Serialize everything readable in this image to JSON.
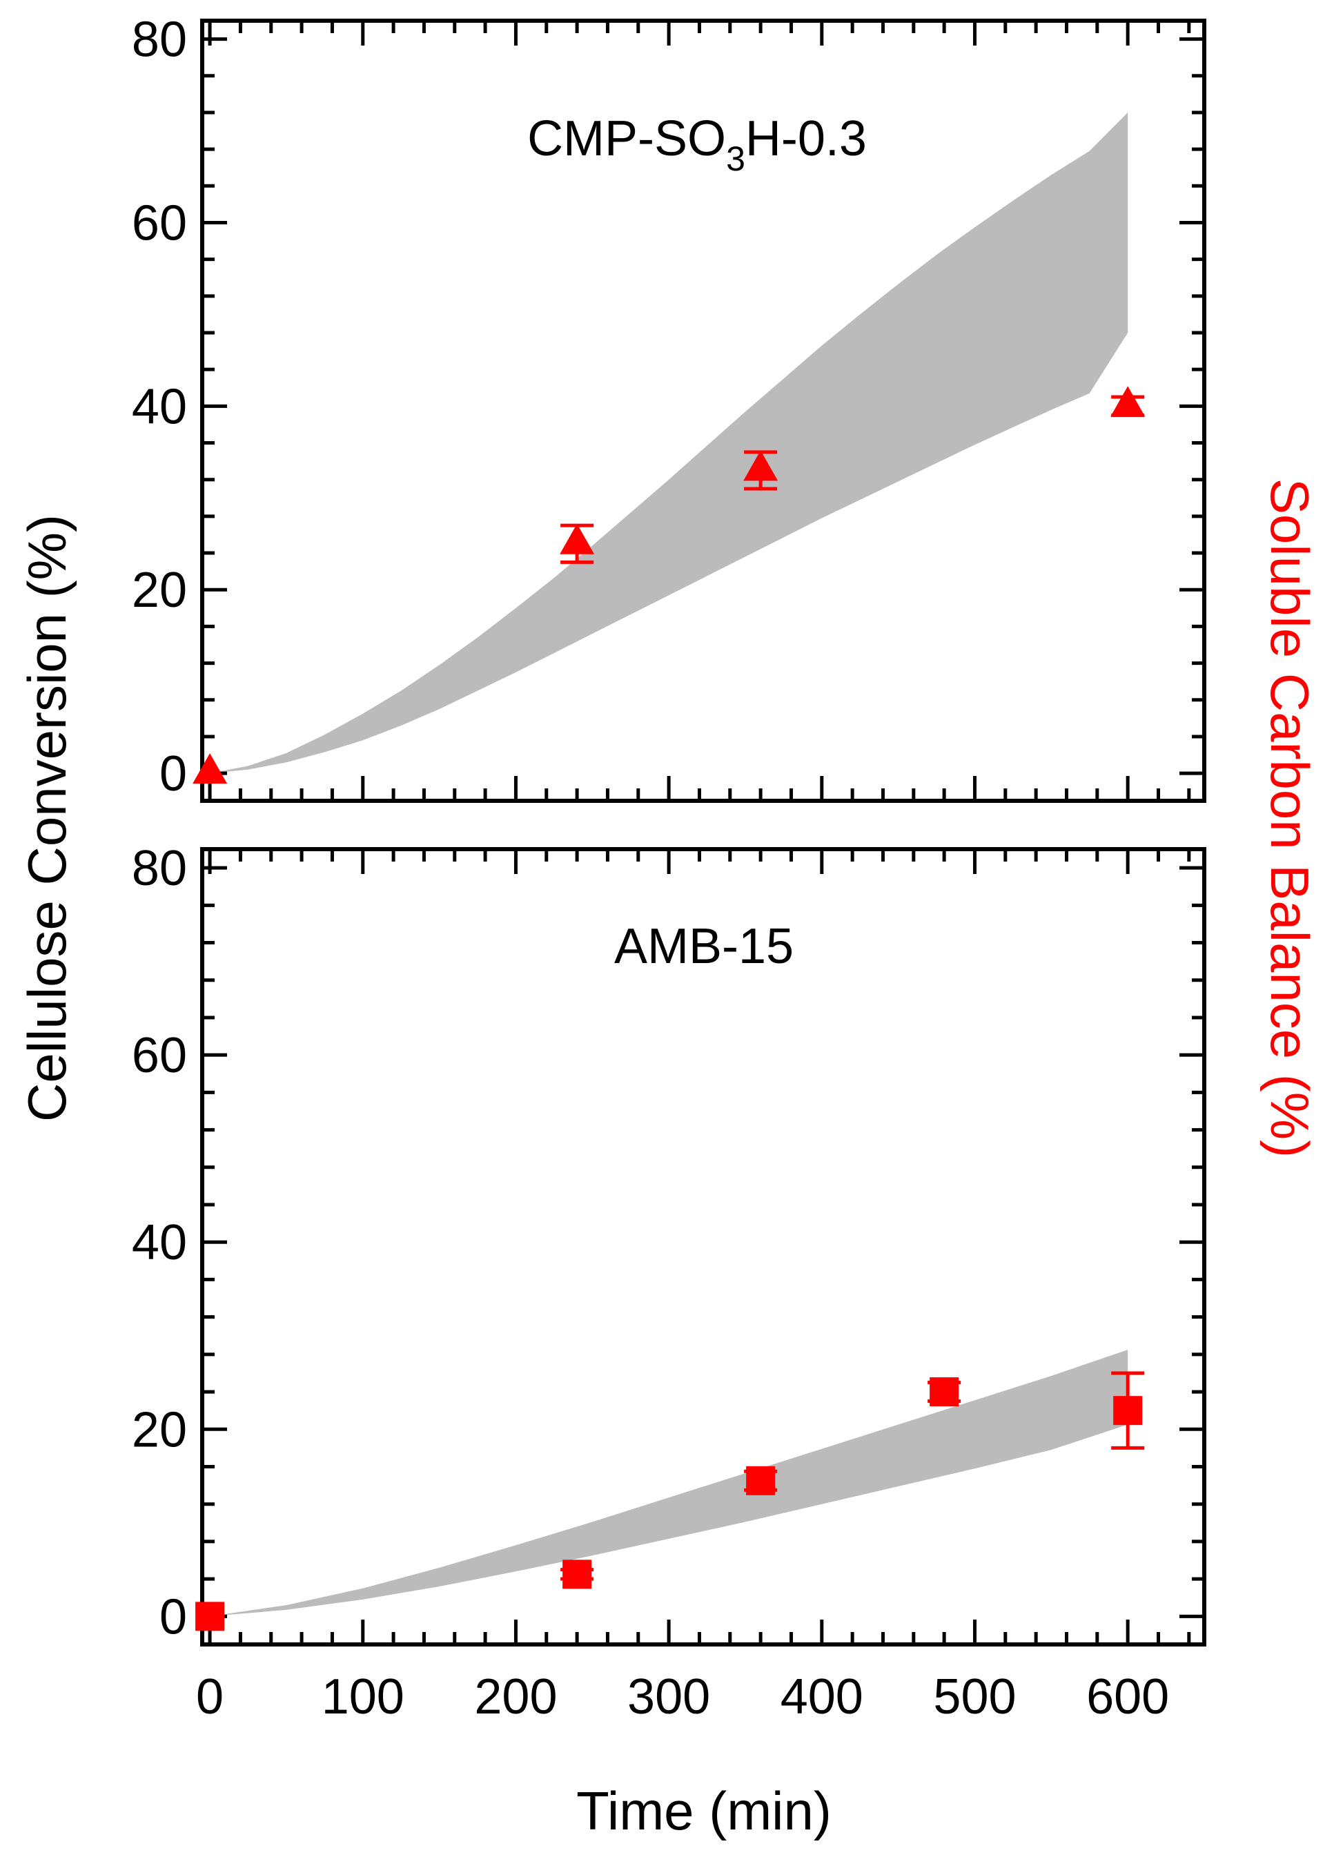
{
  "chart_data": [
    {
      "type": "area",
      "panel_label": "CMP-SO",
      "panel_label_sub": "3",
      "panel_label_rest": "H-0.3",
      "xlim": [
        -5,
        650
      ],
      "ylim": [
        -3,
        82
      ],
      "yticks": [
        0,
        20,
        40,
        60,
        80
      ],
      "band": {
        "x": [
          0,
          25,
          50,
          75,
          100,
          125,
          150,
          175,
          200,
          225,
          250,
          275,
          300,
          325,
          350,
          375,
          400,
          425,
          450,
          475,
          500,
          525,
          550,
          575,
          600
        ],
        "upper": [
          0,
          0.8,
          2.2,
          4.2,
          6.5,
          9.0,
          11.8,
          14.8,
          18.0,
          21.3,
          24.8,
          28.4,
          32.0,
          35.7,
          39.4,
          43.0,
          46.6,
          50.0,
          53.3,
          56.5,
          59.5,
          62.4,
          65.2,
          67.8,
          72.0
        ],
        "lower": [
          0,
          0.4,
          1.2,
          2.3,
          3.6,
          5.2,
          7.0,
          9.0,
          11.0,
          13.1,
          15.2,
          17.3,
          19.4,
          21.5,
          23.6,
          25.7,
          27.8,
          29.8,
          31.8,
          33.8,
          35.8,
          37.7,
          39.6,
          41.4,
          48.0
        ]
      },
      "series": [
        {
          "marker": "triangle",
          "color": "#ff0000",
          "x": [
            0,
            240,
            360,
            600
          ],
          "y": [
            0,
            25,
            33,
            40
          ],
          "err": [
            0,
            2,
            2,
            1
          ]
        }
      ]
    },
    {
      "type": "area",
      "panel_label": "AMB-15",
      "xlim": [
        -5,
        650
      ],
      "ylim": [
        -3,
        82
      ],
      "yticks": [
        0,
        20,
        40,
        60,
        80
      ],
      "xticks": [
        0,
        100,
        200,
        300,
        400,
        500,
        600
      ],
      "band": {
        "x": [
          0,
          50,
          100,
          150,
          200,
          250,
          300,
          350,
          400,
          450,
          500,
          550,
          600
        ],
        "upper": [
          0,
          1.2,
          3.0,
          5.2,
          7.6,
          10.1,
          12.7,
          15.3,
          17.9,
          20.5,
          23.1,
          25.7,
          28.5
        ],
        "lower": [
          0,
          0.7,
          1.8,
          3.2,
          4.8,
          6.5,
          8.3,
          10.1,
          12.0,
          13.9,
          15.8,
          17.8,
          20.5
        ]
      },
      "series": [
        {
          "marker": "square",
          "color": "#ff0000",
          "x": [
            0,
            240,
            360,
            480,
            600
          ],
          "y": [
            0,
            4.5,
            14.5,
            24,
            22
          ],
          "err": [
            0,
            0.5,
            1.0,
            1.0,
            4.0
          ]
        }
      ]
    }
  ],
  "axes": {
    "xlabel": "Time (min)",
    "ylabel_left": "Cellulose Conversion (%)",
    "ylabel_right": "Soluble Carbon Balance (%)",
    "band_color": "#bbbbbb",
    "axis_color": "#000000",
    "right_label_color": "#ff0000"
  }
}
